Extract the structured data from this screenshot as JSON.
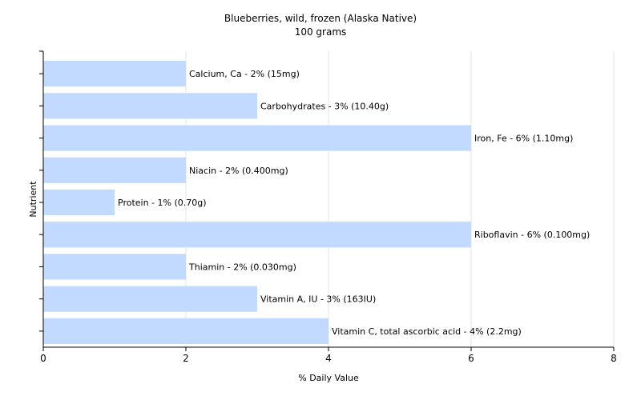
{
  "chart_data": {
    "type": "bar",
    "orientation": "horizontal",
    "title": "Blueberries, wild, frozen (Alaska Native)",
    "subtitle": "100 grams",
    "xlabel": "% Daily Value",
    "ylabel": "Nutrient",
    "xlim": [
      0,
      8
    ],
    "xticks": [
      "0",
      "2",
      "4",
      "6",
      "8"
    ],
    "grid": true,
    "bar_color": "#c2daff",
    "categories": [
      "Calcium, Ca",
      "Carbohydrates",
      "Iron, Fe",
      "Niacin",
      "Protein",
      "Riboflavin",
      "Thiamin",
      "Vitamin A, IU",
      "Vitamin C, total ascorbic acid"
    ],
    "values": [
      2,
      3,
      6,
      2,
      1,
      6,
      2,
      3,
      4
    ],
    "labels": [
      "Calcium, Ca - 2% (15mg)",
      "Carbohydrates - 3% (10.40g)",
      "Iron, Fe - 6% (1.10mg)",
      "Niacin - 2% (0.400mg)",
      "Protein - 1% (0.70g)",
      "Riboflavin - 6% (0.100mg)",
      "Thiamin - 2% (0.030mg)",
      "Vitamin A, IU - 3% (163IU)",
      "Vitamin C, total ascorbic acid - 4% (2.2mg)"
    ]
  }
}
